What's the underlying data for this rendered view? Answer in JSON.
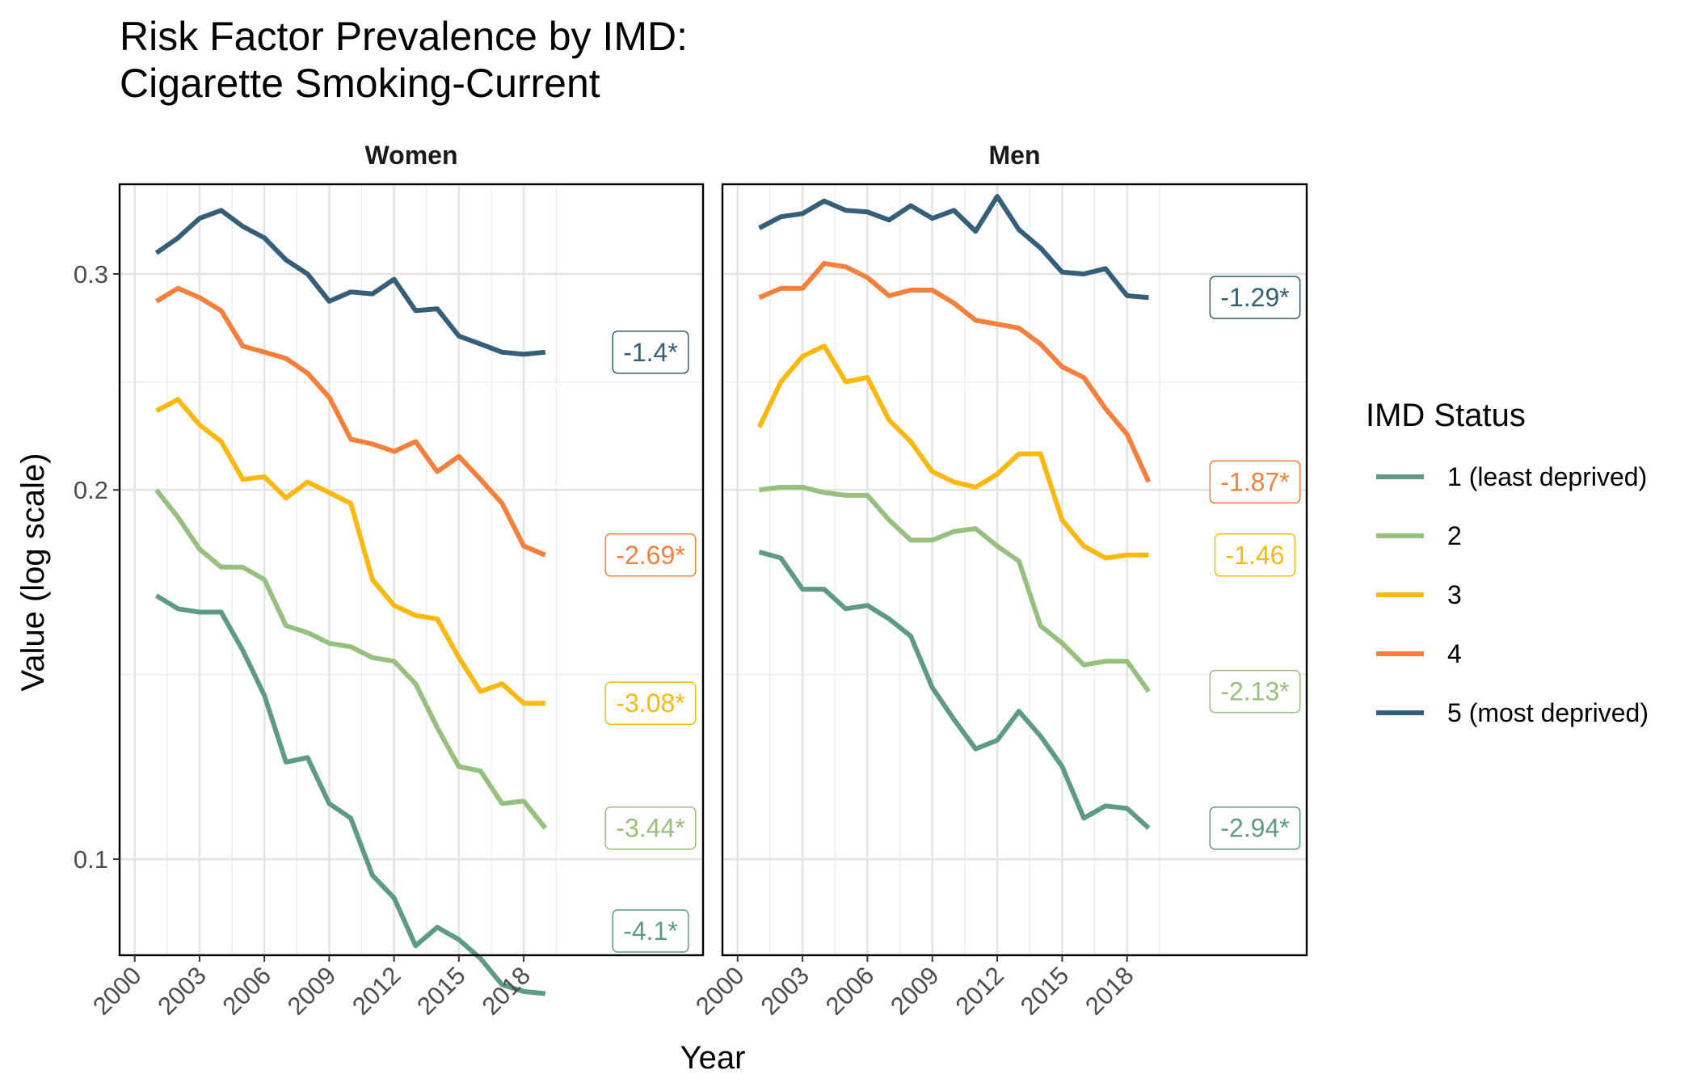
{
  "title_line1": "Risk Factor Prevalence by IMD:",
  "title_line2": "Cigarette Smoking-Current",
  "legend_title": "IMD Status",
  "chart_data": {
    "type": "line",
    "xlabel": "Year",
    "ylabel": "Value (log scale)",
    "y_scale": "log",
    "xlim": [
      1999.3,
      2026.3
    ],
    "ylim": [
      0.0835,
      0.355
    ],
    "x_ticks": [
      2000,
      2003,
      2006,
      2009,
      2012,
      2015,
      2018
    ],
    "x_tick_labels": [
      "2000",
      "2003",
      "2006",
      "2009",
      "2012",
      "2015",
      "2018"
    ],
    "y_ticks": [
      0.1,
      0.2,
      0.3
    ],
    "y_tick_labels": [
      "0.1",
      "0.2",
      "0.3"
    ],
    "grid": true,
    "legend_position": "right",
    "legend": [
      {
        "name": "1 (least deprived)",
        "color": "#5e9b84"
      },
      {
        "name": "2",
        "color": "#97c07e"
      },
      {
        "name": "3",
        "color": "#fbb811"
      },
      {
        "name": "4",
        "color": "#f4803b"
      },
      {
        "name": "5 (most deprived)",
        "color": "#355f78"
      }
    ],
    "x": [
      2001,
      2002,
      2003,
      2004,
      2005,
      2006,
      2007,
      2008,
      2009,
      2010,
      2011,
      2012,
      2013,
      2014,
      2015,
      2016,
      2017,
      2018,
      2019
    ],
    "panels": [
      {
        "name": "Women",
        "series": [
          {
            "name": "1 (least deprived)",
            "color": "#5e9b84",
            "end_label": "-4.1*",
            "values": [
              0.164,
              0.16,
              0.159,
              0.159,
              0.148,
              0.136,
              0.12,
              0.121,
              0.111,
              0.108,
              0.097,
              0.093,
              0.085,
              0.088,
              0.086,
              0.083,
              0.079,
              0.078,
              0.0777
            ]
          },
          {
            "name": "2",
            "color": "#97c07e",
            "end_label": "-3.44*",
            "values": [
              0.2,
              0.19,
              0.179,
              0.173,
              0.173,
              0.169,
              0.155,
              0.153,
              0.15,
              0.149,
              0.146,
              0.145,
              0.139,
              0.128,
              0.119,
              0.118,
              0.111,
              0.1115,
              0.106
            ]
          },
          {
            "name": "3",
            "color": "#fbb811",
            "end_label": "-3.08*",
            "values": [
              0.232,
              0.237,
              0.226,
              0.219,
              0.204,
              0.205,
              0.197,
              0.203,
              0.199,
              0.195,
              0.169,
              0.161,
              0.158,
              0.157,
              0.146,
              0.137,
              0.139,
              0.134,
              0.134
            ]
          },
          {
            "name": "4",
            "color": "#f4803b",
            "end_label": "-2.69*",
            "values": [
              0.285,
              0.292,
              0.287,
              0.28,
              0.262,
              0.259,
              0.256,
              0.249,
              0.238,
              0.22,
              0.218,
              0.215,
              0.219,
              0.207,
              0.213,
              0.204,
              0.195,
              0.18,
              0.177
            ]
          },
          {
            "name": "5 (most deprived)",
            "color": "#355f78",
            "end_label": "-1.4*",
            "values": [
              0.312,
              0.321,
              0.333,
              0.338,
              0.328,
              0.321,
              0.308,
              0.3,
              0.285,
              0.29,
              0.289,
              0.297,
              0.28,
              0.281,
              0.267,
              0.263,
              0.259,
              0.258,
              0.259
            ]
          }
        ]
      },
      {
        "name": "Men",
        "series": [
          {
            "name": "1 (least deprived)",
            "color": "#5e9b84",
            "end_label": "-2.94*",
            "values": [
              0.178,
              0.176,
              0.166,
              0.166,
              0.16,
              0.161,
              0.157,
              0.152,
              0.138,
              0.13,
              0.123,
              0.125,
              0.132,
              0.126,
              0.119,
              0.108,
              0.1105,
              0.11,
              0.106
            ]
          },
          {
            "name": "2",
            "color": "#97c07e",
            "end_label": "-2.13*",
            "values": [
              0.2,
              0.201,
              0.201,
              0.199,
              0.198,
              0.198,
              0.189,
              0.182,
              0.182,
              0.185,
              0.186,
              0.18,
              0.175,
              0.155,
              0.15,
              0.144,
              0.145,
              0.145,
              0.137
            ]
          },
          {
            "name": "3",
            "color": "#fbb811",
            "end_label": "-1.46",
            "values": [
              0.225,
              0.245,
              0.257,
              0.262,
              0.245,
              0.247,
              0.228,
              0.219,
              0.207,
              0.203,
              0.201,
              0.206,
              0.214,
              0.214,
              0.189,
              0.18,
              0.176,
              0.177,
              0.177
            ]
          },
          {
            "name": "4",
            "color": "#f4803b",
            "end_label": "-1.87*",
            "values": [
              0.287,
              0.292,
              0.292,
              0.306,
              0.304,
              0.298,
              0.288,
              0.291,
              0.291,
              0.284,
              0.275,
              0.273,
              0.271,
              0.263,
              0.252,
              0.247,
              0.233,
              0.222,
              0.203
            ]
          },
          {
            "name": "5 (most deprived)",
            "color": "#355f78",
            "end_label": "-1.29*",
            "values": [
              0.327,
              0.334,
              0.336,
              0.344,
              0.338,
              0.337,
              0.332,
              0.341,
              0.333,
              0.338,
              0.325,
              0.347,
              0.326,
              0.315,
              0.301,
              0.3,
              0.303,
              0.288,
              0.287
            ]
          }
        ]
      }
    ]
  }
}
